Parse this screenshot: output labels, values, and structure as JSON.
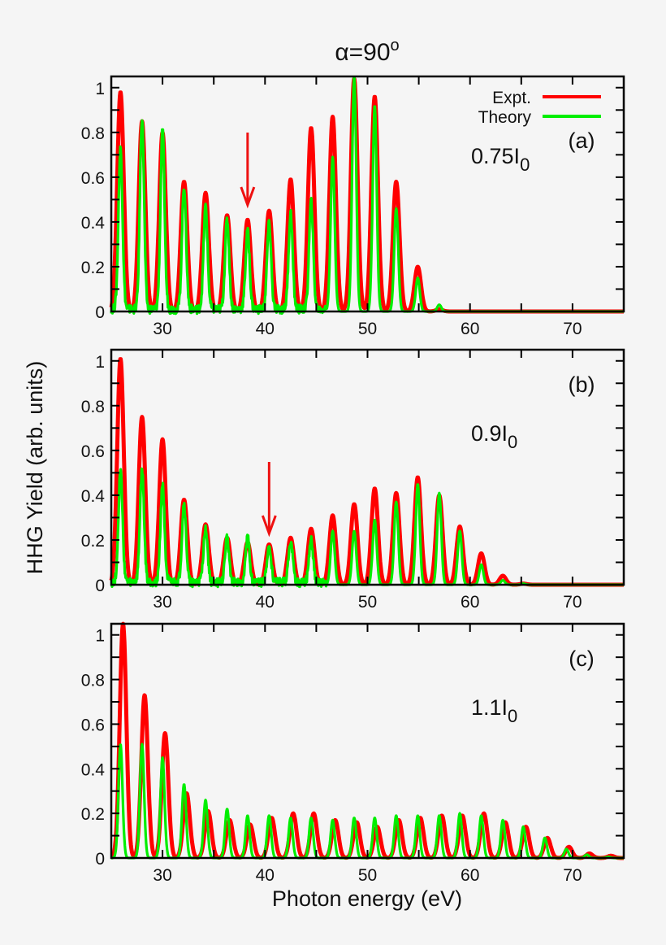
{
  "title_prefix": "α=90",
  "title_sup": "o",
  "ylabel": "HHG Yield (arb. units)",
  "xlabel": "Photon energy (eV)",
  "colors": {
    "expt": "#ff0000",
    "theory": "#00ee00",
    "arrow": "#ee1111",
    "axis": "#000000",
    "background": "#f5f5f5"
  },
  "legend": {
    "expt": "Expt.",
    "theory": "Theory",
    "placement": "top-right of panel (a)"
  },
  "chart_data": [
    {
      "type": "line",
      "panel": "(a)",
      "intensity_label": "0.75I",
      "intensity_sub": "0",
      "xlim": [
        25,
        75
      ],
      "ylim": [
        0,
        1.05
      ],
      "xticks": [
        30,
        40,
        50,
        60,
        70
      ],
      "yticks": [
        0,
        0.2,
        0.4,
        0.6,
        0.8,
        1
      ],
      "ytick_labels": [
        "0",
        "0.2",
        "0.4",
        "0.6",
        "0.8",
        "1"
      ],
      "grid": false,
      "arrow_at_eV": 38.3,
      "x": [
        25.9,
        28.0,
        30.0,
        32.1,
        34.2,
        36.3,
        38.3,
        40.4,
        42.5,
        44.5,
        46.6,
        48.7,
        50.7,
        52.8,
        54.9,
        57.0
      ],
      "series": [
        {
          "name": "Expt.",
          "values": [
            0.98,
            0.85,
            0.8,
            0.58,
            0.53,
            0.43,
            0.41,
            0.45,
            0.59,
            0.82,
            0.87,
            1.04,
            0.96,
            0.58,
            0.2,
            0.01
          ]
        },
        {
          "name": "Theory",
          "values": [
            0.72,
            0.86,
            0.8,
            0.55,
            0.46,
            0.4,
            0.35,
            0.38,
            0.43,
            0.48,
            0.69,
            1.05,
            0.92,
            0.46,
            0.15,
            0.03
          ]
        }
      ]
    },
    {
      "type": "line",
      "panel": "(b)",
      "intensity_label": "0.9I",
      "intensity_sub": "0",
      "xlim": [
        25,
        75
      ],
      "ylim": [
        0,
        1.05
      ],
      "xticks": [
        30,
        40,
        50,
        60,
        70
      ],
      "yticks": [
        0,
        0.2,
        0.4,
        0.6,
        0.8,
        1
      ],
      "ytick_labels": [
        "0",
        "0.2",
        "0.4",
        "0.6",
        "0.8",
        "1"
      ],
      "grid": false,
      "arrow_at_eV": 40.4,
      "x": [
        25.9,
        28.0,
        30.0,
        32.1,
        34.2,
        36.3,
        38.3,
        40.4,
        42.5,
        44.5,
        46.6,
        48.7,
        50.7,
        52.8,
        54.9,
        57.0,
        59.0,
        61.1,
        63.2,
        65.2
      ],
      "series": [
        {
          "name": "Expt.",
          "values": [
            1.01,
            0.75,
            0.65,
            0.38,
            0.27,
            0.21,
            0.19,
            0.18,
            0.21,
            0.25,
            0.31,
            0.36,
            0.43,
            0.41,
            0.48,
            0.4,
            0.26,
            0.14,
            0.04,
            0.005
          ]
        },
        {
          "name": "Theory",
          "values": [
            0.5,
            0.5,
            0.44,
            0.35,
            0.25,
            0.2,
            0.2,
            0.16,
            0.19,
            0.19,
            0.24,
            0.24,
            0.29,
            0.37,
            0.45,
            0.41,
            0.24,
            0.09,
            0.02,
            0.005
          ]
        }
      ]
    },
    {
      "type": "line",
      "panel": "(c)",
      "intensity_label": "1.1I",
      "intensity_sub": "0",
      "xlim": [
        25,
        75
      ],
      "ylim": [
        0,
        1.05
      ],
      "xticks": [
        30,
        40,
        50,
        60,
        70
      ],
      "yticks": [
        0,
        0.2,
        0.4,
        0.6,
        0.8,
        1
      ],
      "ytick_labels": [
        "0",
        "0.2",
        "0.4",
        "0.6",
        "0.8",
        "1"
      ],
      "grid": false,
      "x": [
        25.9,
        28.0,
        30.0,
        32.1,
        34.2,
        36.3,
        38.3,
        40.4,
        42.5,
        44.5,
        46.6,
        48.7,
        50.7,
        52.8,
        54.9,
        57.0,
        59.0,
        61.1,
        63.2,
        65.2,
        67.3,
        69.4,
        71.4,
        73.5
      ],
      "series": [
        {
          "name": "Expt.",
          "values": [
            1.05,
            0.73,
            0.56,
            0.29,
            0.21,
            0.17,
            0.15,
            0.18,
            0.2,
            0.2,
            0.17,
            0.16,
            0.14,
            0.17,
            0.18,
            0.19,
            0.19,
            0.2,
            0.16,
            0.14,
            0.09,
            0.05,
            0.02,
            0.01
          ]
        },
        {
          "name": "Theory",
          "values": [
            0.51,
            0.51,
            0.45,
            0.33,
            0.26,
            0.22,
            0.19,
            0.19,
            0.18,
            0.18,
            0.17,
            0.18,
            0.18,
            0.19,
            0.19,
            0.19,
            0.2,
            0.19,
            0.17,
            0.14,
            0.09,
            0.04,
            0.015,
            0.005
          ]
        }
      ]
    }
  ]
}
